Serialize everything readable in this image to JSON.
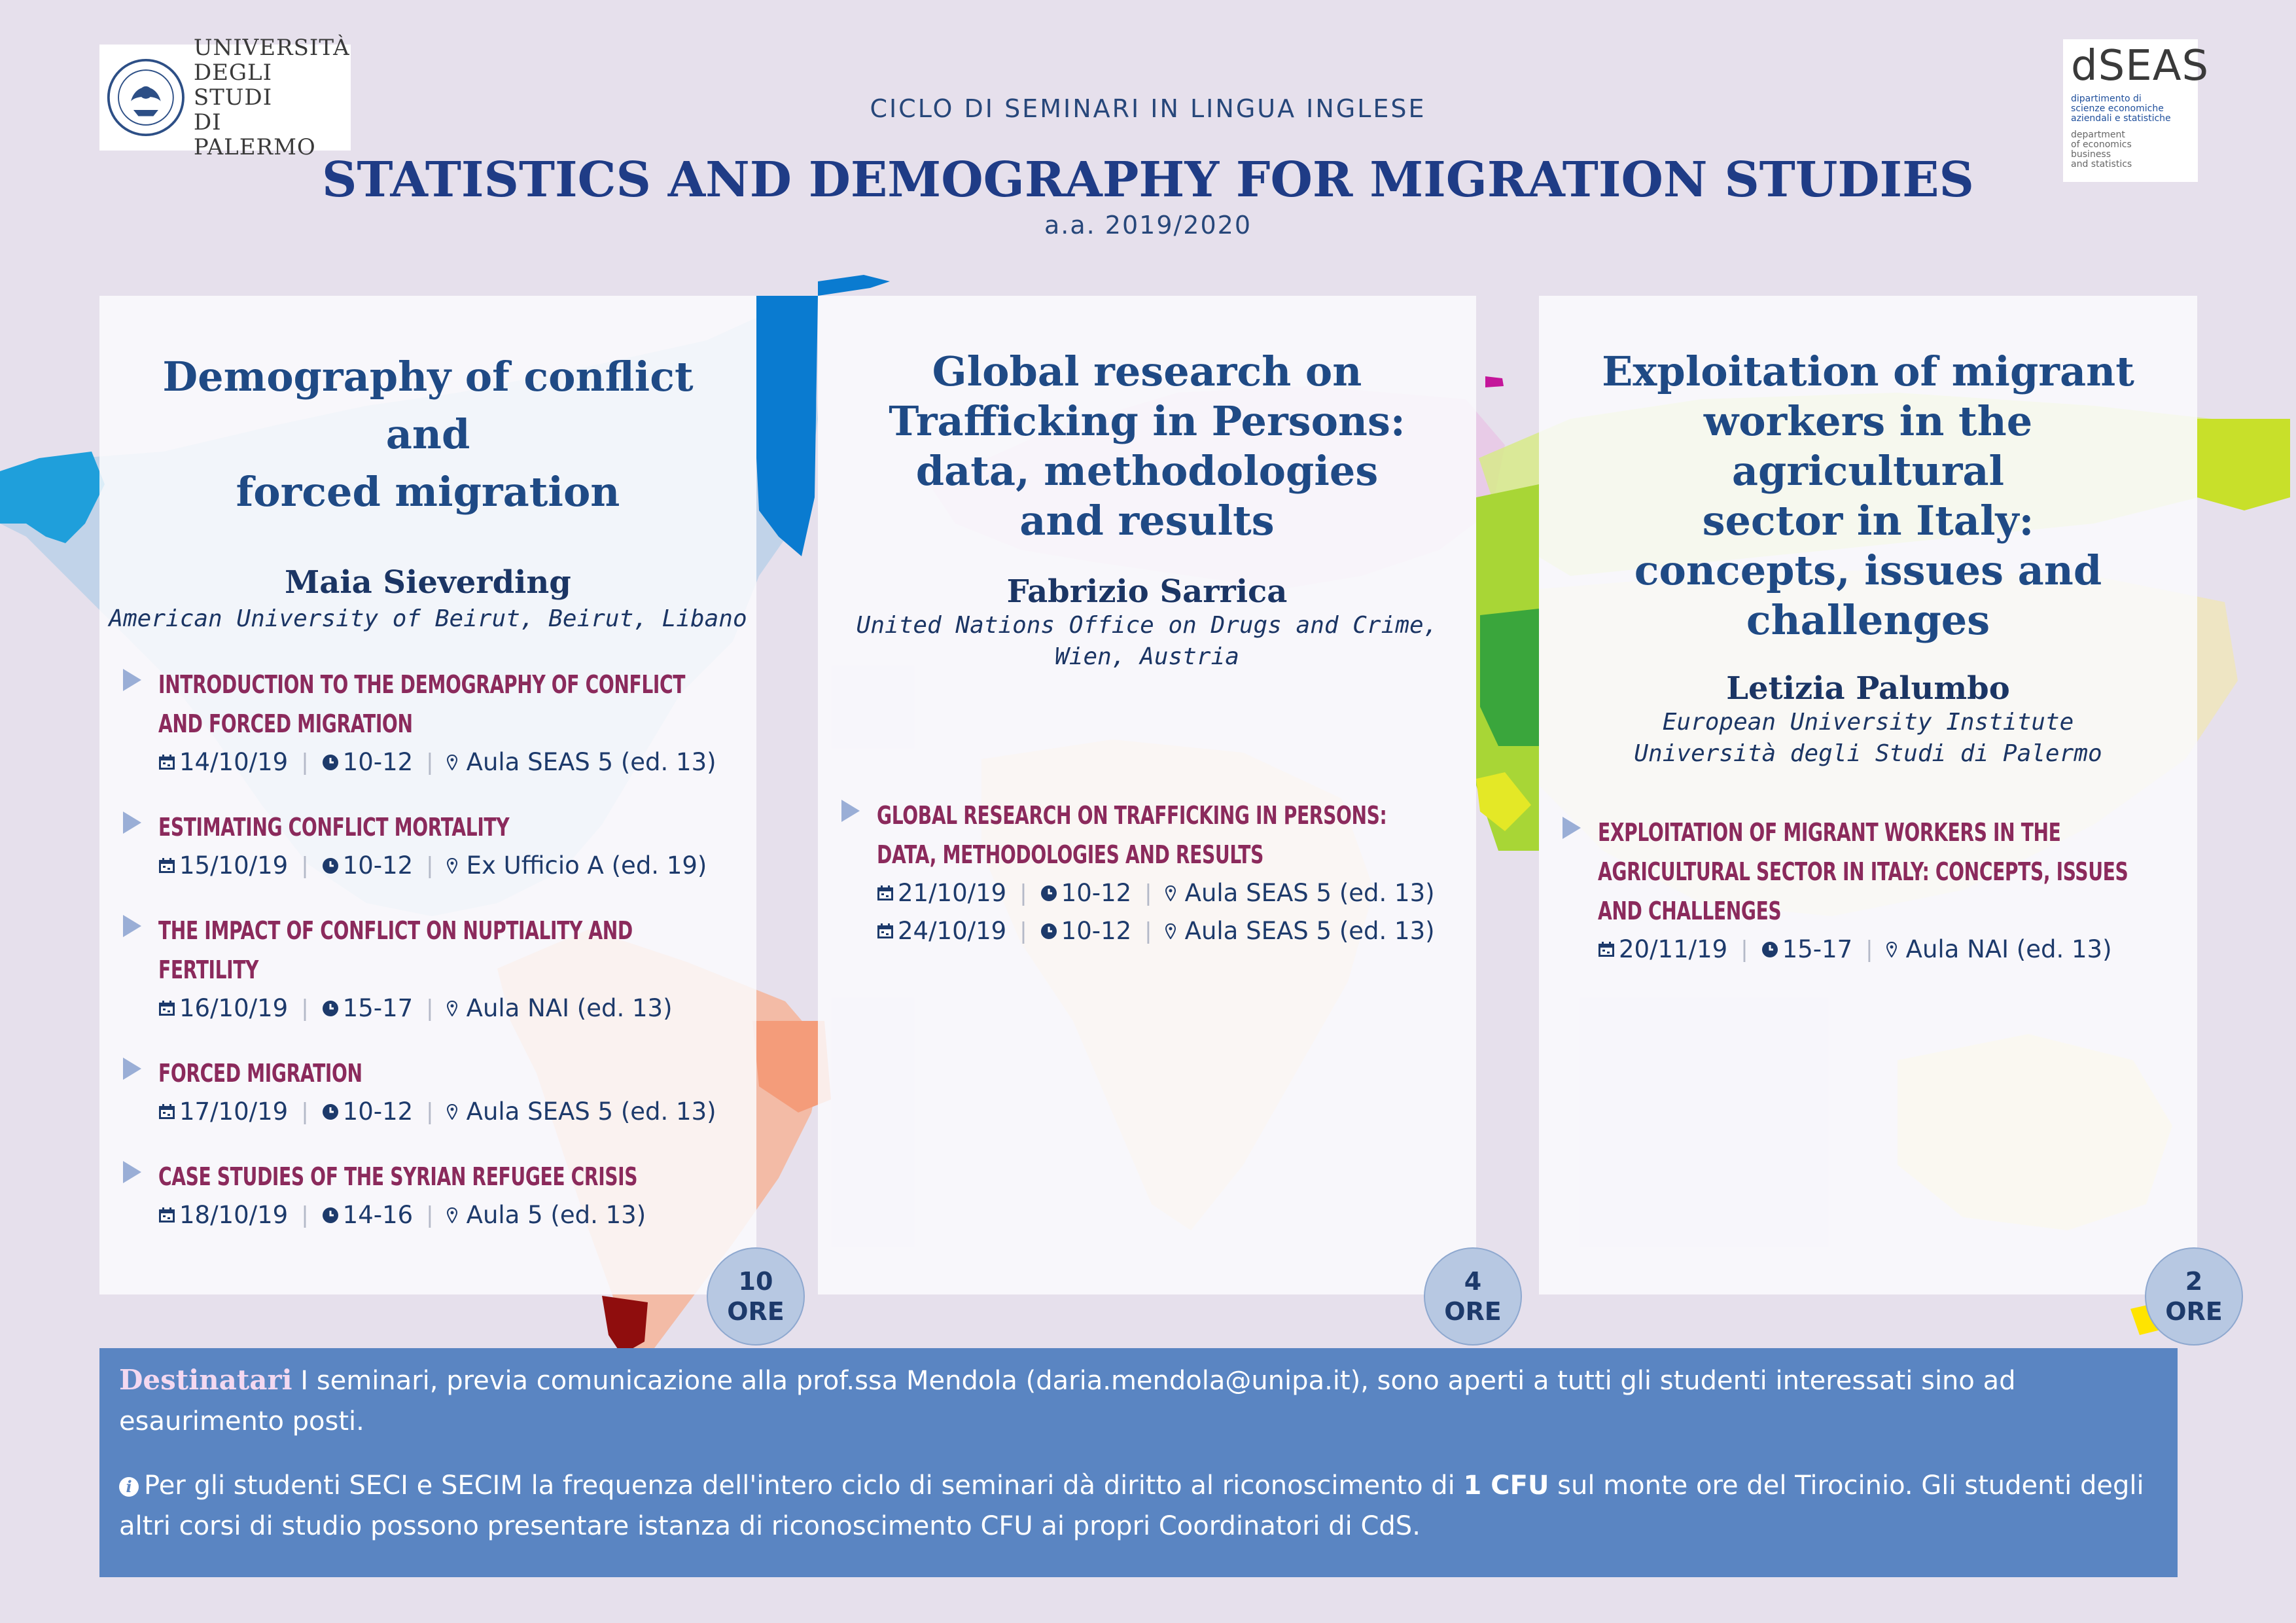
{
  "header": {
    "university_name_lines": [
      "UNIVERSITÀ",
      "DEGLI STUDI",
      "DI PALERMO"
    ],
    "department_mark": "dSEAS",
    "department_it_lines": [
      "dipartimento di",
      "scienze economiche",
      "aziendali e statistiche"
    ],
    "department_en_lines": [
      "department",
      "of economics",
      "business",
      "and statistics"
    ],
    "series_label": "CICLO DI SEMINARI IN LINGUA INGLESE",
    "title": "STATISTICS AND DEMOGRAPHY FOR MIGRATION STUDIES",
    "academic_year": "a.a. 2019/2020"
  },
  "cards": [
    {
      "title_lines": [
        "Demography of conflict and",
        "forced migration"
      ],
      "speaker": "Maia Sieverding",
      "affiliation_lines": [
        "American University of Beirut, Beirut, Libano"
      ],
      "hours_number": "10",
      "hours_unit": "ORE",
      "sessions": [
        {
          "title": "Introduction to the demography of conflict and forced migration",
          "date": "14/10/19",
          "time": "10-12",
          "room": "Aula SEAS 5 (ed. 13)"
        },
        {
          "title": "Estimating conflict mortality",
          "date": "15/10/19",
          "time": "10-12",
          "room": "Ex Ufficio A (ed. 19)"
        },
        {
          "title": "The impact of conflict on nuptiality and fertility",
          "date": "16/10/19",
          "time": "15-17",
          "room": "Aula NAI (ed. 13)"
        },
        {
          "title": "Forced migration",
          "date": "17/10/19",
          "time": "10-12",
          "room": "Aula SEAS 5 (ed. 13)"
        },
        {
          "title": "Case studies of the Syrian refugee crisis",
          "date": "18/10/19",
          "time": "14-16",
          "room": "Aula 5 (ed. 13)"
        }
      ]
    },
    {
      "title_lines": [
        "Global research on",
        "Trafficking in Persons:",
        "data, methodologies",
        "and results"
      ],
      "speaker": "Fabrizio Sarrica",
      "affiliation_lines": [
        "United Nations Office on Drugs and Crime,",
        "Wien, Austria"
      ],
      "hours_number": "4",
      "hours_unit": "ORE",
      "sessions": [
        {
          "title": "Global research on trafficking in persons: data, methodologies and results",
          "date": "21/10/19",
          "time": "10-12",
          "room": "Aula SEAS 5 (ed. 13)",
          "date2": "24/10/19",
          "time2": "10-12",
          "room2": "Aula SEAS 5 (ed. 13)"
        }
      ]
    },
    {
      "title_lines": [
        "Exploitation of migrant",
        "workers in the agricultural",
        "sector in Italy:",
        "concepts, issues and",
        "challenges"
      ],
      "speaker": "Letizia Palumbo",
      "affiliation_lines": [
        "European University Institute",
        "Università degli Studi di Palermo"
      ],
      "hours_number": "2",
      "hours_unit": "ORE",
      "sessions": [
        {
          "title": "Exploitation of migrant workers in the agricultural sector in Italy: concepts, issues and challenges",
          "date": "20/11/19",
          "time": "15-17",
          "room": "Aula NAI (ed. 13)"
        }
      ]
    }
  ],
  "info": {
    "lead": "Destinatari",
    "paragraph1": " I seminari, previa comunicazione alla prof.ssa Mendola (daria.mendola@unipa.it), sono aperti a tutti gli studenti interessati sino ad esaurimento posti.",
    "info_icon": "i",
    "paragraph2_before": "Per gli studenti SECI e SECIM la frequenza dell'intero ciclo di seminari dà diritto al riconoscimento di ",
    "paragraph2_bold": "1 CFU",
    "paragraph2_after": " sul monte ore del Tirocinio. Gli studenti degli altri corsi di studio possono presentare istanza di riconoscimento CFU ai propri Coordinatori di CdS."
  },
  "colors": {
    "background": "#e6e0ec",
    "title_navy": "#1f3c86",
    "session_title": "#8b2a5c",
    "info_box": "#5a85c2",
    "badge": "#b7c8e2"
  },
  "icons": [
    "calendar-icon",
    "clock-icon",
    "location-pin-icon",
    "info-icon",
    "play-bullet-icon"
  ]
}
